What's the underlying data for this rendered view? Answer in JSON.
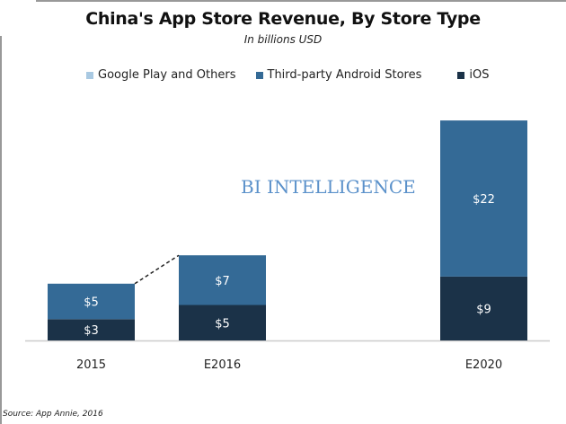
{
  "chart_data": {
    "type": "bar",
    "stacked": true,
    "title": "China's App Store Revenue, By Store Type",
    "subtitle": "In billions USD",
    "categories": [
      "2015",
      "E2016",
      "E2020"
    ],
    "series": [
      {
        "name": "Google Play and Others",
        "color": "#a9c9e2",
        "values": [
          0,
          0,
          0
        ],
        "labels": [
          "",
          "",
          ""
        ]
      },
      {
        "name": "Third-party Android Stores",
        "color": "#346a96",
        "values": [
          5,
          7,
          22
        ],
        "labels": [
          "$5",
          "$7",
          "$22"
        ]
      },
      {
        "name": "iOS",
        "color": "#1b3248",
        "values": [
          3,
          5,
          9
        ],
        "labels": [
          "$3",
          "$5",
          "$9"
        ]
      }
    ],
    "legend_order": [
      0,
      1,
      2
    ],
    "legend_position": "top",
    "grid": false,
    "ylim": [
      0,
      32
    ],
    "source": "Source: App Annie, 2016",
    "watermark": "BI INTELLIGENCE"
  }
}
